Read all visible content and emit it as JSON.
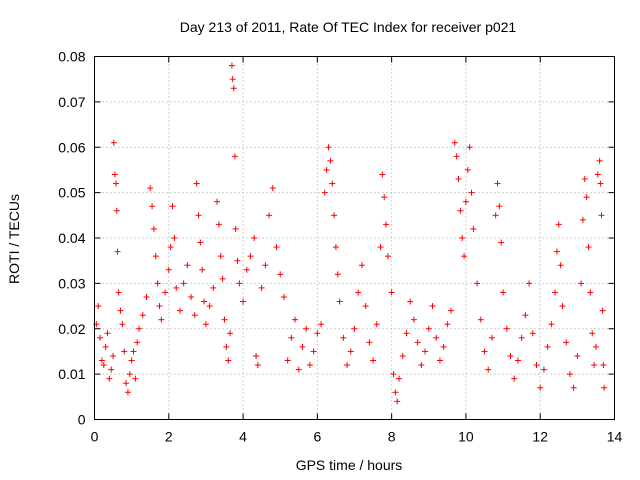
{
  "chart_data": {
    "type": "scatter",
    "title": "Day 213 of 2011, Rate Of TEC Index for receiver p021",
    "xlabel": "GPS time / hours",
    "ylabel": "ROTI / TECUs",
    "xlim": [
      0,
      14
    ],
    "ylim": [
      0,
      0.08
    ],
    "x_ticks": [
      0,
      2,
      4,
      6,
      8,
      10,
      12,
      14
    ],
    "y_ticks": [
      0,
      0.01,
      0.02,
      0.03,
      0.04,
      0.05,
      0.06,
      0.07,
      0.08
    ],
    "x_tick_labels": [
      "0",
      "2",
      "4",
      "6",
      "8",
      "10",
      "12",
      "14"
    ],
    "y_tick_labels": [
      "0",
      "0.01",
      "0.02",
      "0.03",
      "0.04",
      "0.05",
      "0.06",
      "0.07",
      "0.08"
    ],
    "grid": true,
    "marker": "+",
    "marker_color": "#ff0000",
    "series": [
      {
        "name": "ROTI",
        "points": [
          [
            0.05,
            0.021
          ],
          [
            0.1,
            0.025
          ],
          [
            0.15,
            0.018
          ],
          [
            0.2,
            0.013
          ],
          [
            0.25,
            0.012
          ],
          [
            0.3,
            0.016
          ],
          [
            0.35,
            0.019
          ],
          [
            0.4,
            0.009
          ],
          [
            0.45,
            0.011
          ],
          [
            0.5,
            0.014
          ],
          [
            0.52,
            0.061
          ],
          [
            0.55,
            0.054
          ],
          [
            0.58,
            0.052
          ],
          [
            0.6,
            0.046
          ],
          [
            0.62,
            0.037
          ],
          [
            0.65,
            0.028
          ],
          [
            0.7,
            0.024
          ],
          [
            0.75,
            0.021
          ],
          [
            0.8,
            0.015
          ],
          [
            0.85,
            0.008
          ],
          [
            0.9,
            0.006
          ],
          [
            0.95,
            0.01
          ],
          [
            1.0,
            0.013
          ],
          [
            1.05,
            0.015
          ],
          [
            1.1,
            0.009
          ],
          [
            1.15,
            0.017
          ],
          [
            1.2,
            0.02
          ],
          [
            1.3,
            0.023
          ],
          [
            1.4,
            0.027
          ],
          [
            1.5,
            0.051
          ],
          [
            1.55,
            0.047
          ],
          [
            1.6,
            0.042
          ],
          [
            1.65,
            0.036
          ],
          [
            1.7,
            0.03
          ],
          [
            1.75,
            0.025
          ],
          [
            1.8,
            0.022
          ],
          [
            1.9,
            0.028
          ],
          [
            2.0,
            0.033
          ],
          [
            2.05,
            0.038
          ],
          [
            2.1,
            0.047
          ],
          [
            2.15,
            0.04
          ],
          [
            2.2,
            0.029
          ],
          [
            2.3,
            0.024
          ],
          [
            2.4,
            0.03
          ],
          [
            2.5,
            0.034
          ],
          [
            2.6,
            0.027
          ],
          [
            2.7,
            0.023
          ],
          [
            2.75,
            0.052
          ],
          [
            2.8,
            0.045
          ],
          [
            2.85,
            0.039
          ],
          [
            2.9,
            0.033
          ],
          [
            2.95,
            0.026
          ],
          [
            3.0,
            0.021
          ],
          [
            3.1,
            0.025
          ],
          [
            3.2,
            0.029
          ],
          [
            3.3,
            0.048
          ],
          [
            3.35,
            0.043
          ],
          [
            3.4,
            0.036
          ],
          [
            3.45,
            0.031
          ],
          [
            3.5,
            0.022
          ],
          [
            3.55,
            0.016
          ],
          [
            3.6,
            0.013
          ],
          [
            3.65,
            0.019
          ],
          [
            3.7,
            0.078
          ],
          [
            3.72,
            0.075
          ],
          [
            3.75,
            0.073
          ],
          [
            3.78,
            0.058
          ],
          [
            3.8,
            0.042
          ],
          [
            3.85,
            0.035
          ],
          [
            3.9,
            0.03
          ],
          [
            4.0,
            0.026
          ],
          [
            4.1,
            0.033
          ],
          [
            4.2,
            0.036
          ],
          [
            4.3,
            0.04
          ],
          [
            4.35,
            0.014
          ],
          [
            4.4,
            0.012
          ],
          [
            4.5,
            0.029
          ],
          [
            4.6,
            0.034
          ],
          [
            4.7,
            0.045
          ],
          [
            4.8,
            0.051
          ],
          [
            4.9,
            0.038
          ],
          [
            5.0,
            0.032
          ],
          [
            5.1,
            0.027
          ],
          [
            5.2,
            0.013
          ],
          [
            5.3,
            0.018
          ],
          [
            5.4,
            0.022
          ],
          [
            5.5,
            0.011
          ],
          [
            5.6,
            0.016
          ],
          [
            5.7,
            0.02
          ],
          [
            5.8,
            0.012
          ],
          [
            5.9,
            0.015
          ],
          [
            6.0,
            0.019
          ],
          [
            6.1,
            0.021
          ],
          [
            6.2,
            0.05
          ],
          [
            6.25,
            0.055
          ],
          [
            6.3,
            0.06
          ],
          [
            6.35,
            0.057
          ],
          [
            6.4,
            0.052
          ],
          [
            6.45,
            0.045
          ],
          [
            6.5,
            0.038
          ],
          [
            6.55,
            0.032
          ],
          [
            6.6,
            0.026
          ],
          [
            6.7,
            0.018
          ],
          [
            6.8,
            0.012
          ],
          [
            6.9,
            0.015
          ],
          [
            7.0,
            0.02
          ],
          [
            7.1,
            0.028
          ],
          [
            7.2,
            0.034
          ],
          [
            7.3,
            0.025
          ],
          [
            7.4,
            0.017
          ],
          [
            7.5,
            0.013
          ],
          [
            7.6,
            0.021
          ],
          [
            7.7,
            0.038
          ],
          [
            7.75,
            0.054
          ],
          [
            7.8,
            0.049
          ],
          [
            7.85,
            0.043
          ],
          [
            7.9,
            0.036
          ],
          [
            8.0,
            0.028
          ],
          [
            8.05,
            0.01
          ],
          [
            8.1,
            0.006
          ],
          [
            8.15,
            0.004
          ],
          [
            8.2,
            0.009
          ],
          [
            8.3,
            0.014
          ],
          [
            8.4,
            0.019
          ],
          [
            8.5,
            0.026
          ],
          [
            8.6,
            0.022
          ],
          [
            8.7,
            0.017
          ],
          [
            8.8,
            0.012
          ],
          [
            8.9,
            0.015
          ],
          [
            9.0,
            0.02
          ],
          [
            9.1,
            0.025
          ],
          [
            9.2,
            0.018
          ],
          [
            9.3,
            0.013
          ],
          [
            9.4,
            0.016
          ],
          [
            9.5,
            0.021
          ],
          [
            9.6,
            0.024
          ],
          [
            9.7,
            0.061
          ],
          [
            9.75,
            0.058
          ],
          [
            9.8,
            0.053
          ],
          [
            9.85,
            0.046
          ],
          [
            9.9,
            0.04
          ],
          [
            9.95,
            0.036
          ],
          [
            10.0,
            0.048
          ],
          [
            10.05,
            0.055
          ],
          [
            10.1,
            0.06
          ],
          [
            10.15,
            0.05
          ],
          [
            10.2,
            0.042
          ],
          [
            10.3,
            0.03
          ],
          [
            10.4,
            0.022
          ],
          [
            10.5,
            0.015
          ],
          [
            10.6,
            0.011
          ],
          [
            10.7,
            0.018
          ],
          [
            10.8,
            0.045
          ],
          [
            10.85,
            0.052
          ],
          [
            10.9,
            0.047
          ],
          [
            10.95,
            0.039
          ],
          [
            11.0,
            0.028
          ],
          [
            11.1,
            0.02
          ],
          [
            11.2,
            0.014
          ],
          [
            11.3,
            0.009
          ],
          [
            11.4,
            0.013
          ],
          [
            11.5,
            0.018
          ],
          [
            11.6,
            0.023
          ],
          [
            11.7,
            0.03
          ],
          [
            11.8,
            0.019
          ],
          [
            11.9,
            0.012
          ],
          [
            12.0,
            0.007
          ],
          [
            12.1,
            0.011
          ],
          [
            12.2,
            0.016
          ],
          [
            12.3,
            0.021
          ],
          [
            12.4,
            0.028
          ],
          [
            12.45,
            0.037
          ],
          [
            12.5,
            0.043
          ],
          [
            12.55,
            0.034
          ],
          [
            12.6,
            0.025
          ],
          [
            12.7,
            0.017
          ],
          [
            12.8,
            0.01
          ],
          [
            12.9,
            0.007
          ],
          [
            13.0,
            0.014
          ],
          [
            13.1,
            0.03
          ],
          [
            13.15,
            0.044
          ],
          [
            13.2,
            0.053
          ],
          [
            13.25,
            0.049
          ],
          [
            13.3,
            0.038
          ],
          [
            13.35,
            0.028
          ],
          [
            13.4,
            0.019
          ],
          [
            13.45,
            0.012
          ],
          [
            13.5,
            0.016
          ],
          [
            13.55,
            0.054
          ],
          [
            13.6,
            0.057
          ],
          [
            13.62,
            0.052
          ],
          [
            13.65,
            0.045
          ],
          [
            13.68,
            0.024
          ],
          [
            13.7,
            0.012
          ],
          [
            13.72,
            0.007
          ]
        ]
      }
    ]
  }
}
